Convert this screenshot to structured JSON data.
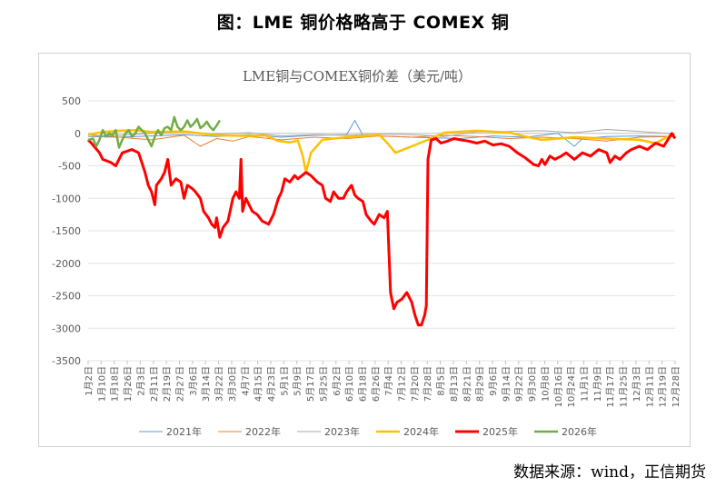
{
  "header": {
    "title": "图：LME 铜价格略高于 COMEX 铜"
  },
  "footer": {
    "source": "数据来源：wind，正信期货"
  },
  "chart_data": {
    "type": "line",
    "title": "LME铜与COMEX铜价差（美元/吨）",
    "xlabel": "",
    "ylabel": "",
    "ylim": [
      -3500,
      500
    ],
    "yticks": [
      500,
      0,
      -500,
      -1000,
      -1500,
      -2000,
      -2500,
      -3000,
      -3500
    ],
    "grid": "horizontal",
    "legend": "bottom",
    "x_tick_labels": [
      "1月2日",
      "1月10日",
      "1月18日",
      "1月26日",
      "2月3日",
      "2月11日",
      "2月19日",
      "2月27日",
      "3月6日",
      "3月14日",
      "3月22日",
      "3月30日",
      "4月7日",
      "4月15日",
      "4月23日",
      "5月1日",
      "5月9日",
      "5月17日",
      "5月25日",
      "6月2日",
      "6月10日",
      "6月18日",
      "6月26日",
      "7月4日",
      "7月12日",
      "7月20日",
      "7月28日",
      "8月5日",
      "8月13日",
      "8月21日",
      "8月29日",
      "9月6日",
      "9月14日",
      "9月22日",
      "9月30日",
      "10月8日",
      "10月16日",
      "10月24日",
      "11月1日",
      "11月9日",
      "11月17日",
      "11月25日",
      "12月3日",
      "12月11日",
      "12月19日",
      "12月28日"
    ],
    "x_domain_days": [
      1,
      362
    ],
    "series": [
      {
        "name": "2021年",
        "color": "#5b9bd5",
        "width": 1,
        "points": [
          [
            1,
            -50
          ],
          [
            20,
            -60
          ],
          [
            40,
            -40
          ],
          [
            60,
            -20
          ],
          [
            80,
            -50
          ],
          [
            100,
            -20
          ],
          [
            120,
            -60
          ],
          [
            140,
            -30
          ],
          [
            160,
            -20
          ],
          [
            165,
            200
          ],
          [
            170,
            -30
          ],
          [
            200,
            -60
          ],
          [
            230,
            -80
          ],
          [
            250,
            -40
          ],
          [
            270,
            -60
          ],
          [
            280,
            -30
          ],
          [
            290,
            0
          ],
          [
            295,
            -100
          ],
          [
            300,
            -200
          ],
          [
            305,
            -80
          ],
          [
            320,
            -50
          ],
          [
            340,
            -40
          ],
          [
            362,
            -50
          ]
        ]
      },
      {
        "name": "2022年",
        "color": "#ed7d31",
        "width": 1,
        "points": [
          [
            1,
            -20
          ],
          [
            20,
            -60
          ],
          [
            40,
            -100
          ],
          [
            60,
            -30
          ],
          [
            70,
            -200
          ],
          [
            80,
            -80
          ],
          [
            90,
            -120
          ],
          [
            100,
            -50
          ],
          [
            120,
            -100
          ],
          [
            140,
            -60
          ],
          [
            160,
            -80
          ],
          [
            180,
            -40
          ],
          [
            200,
            -60
          ],
          [
            220,
            -30
          ],
          [
            240,
            -50
          ],
          [
            260,
            -80
          ],
          [
            280,
            -60
          ],
          [
            300,
            -80
          ],
          [
            320,
            -120
          ],
          [
            340,
            -60
          ],
          [
            362,
            -50
          ]
        ]
      },
      {
        "name": "2023年",
        "color": "#a5a5a5",
        "width": 1,
        "points": [
          [
            1,
            -50
          ],
          [
            20,
            -30
          ],
          [
            40,
            0
          ],
          [
            60,
            20
          ],
          [
            80,
            -10
          ],
          [
            100,
            10
          ],
          [
            120,
            -40
          ],
          [
            140,
            -20
          ],
          [
            160,
            -30
          ],
          [
            180,
            -10
          ],
          [
            200,
            -20
          ],
          [
            220,
            -50
          ],
          [
            240,
            20
          ],
          [
            260,
            30
          ],
          [
            280,
            40
          ],
          [
            300,
            10
          ],
          [
            320,
            60
          ],
          [
            340,
            30
          ],
          [
            362,
            -10
          ]
        ]
      },
      {
        "name": "2024年",
        "color": "#ffc000",
        "width": 2.5,
        "points": [
          [
            1,
            -20
          ],
          [
            10,
            20
          ],
          [
            20,
            40
          ],
          [
            30,
            50
          ],
          [
            40,
            20
          ],
          [
            60,
            30
          ],
          [
            80,
            -30
          ],
          [
            100,
            -40
          ],
          [
            110,
            -30
          ],
          [
            118,
            -120
          ],
          [
            125,
            -140
          ],
          [
            130,
            -110
          ],
          [
            133,
            -350
          ],
          [
            135,
            -600
          ],
          [
            138,
            -300
          ],
          [
            145,
            -100
          ],
          [
            160,
            -60
          ],
          [
            180,
            -20
          ],
          [
            185,
            -150
          ],
          [
            190,
            -300
          ],
          [
            200,
            -200
          ],
          [
            210,
            -100
          ],
          [
            220,
            10
          ],
          [
            240,
            40
          ],
          [
            260,
            10
          ],
          [
            270,
            -50
          ],
          [
            280,
            -100
          ],
          [
            300,
            -60
          ],
          [
            320,
            -80
          ],
          [
            340,
            -100
          ],
          [
            350,
            -150
          ],
          [
            360,
            -20
          ]
        ]
      },
      {
        "name": "2025年",
        "color": "#ff0000",
        "width": 3,
        "points": [
          [
            1,
            -100
          ],
          [
            3,
            -150
          ],
          [
            8,
            -300
          ],
          [
            10,
            -400
          ],
          [
            15,
            -450
          ],
          [
            18,
            -500
          ],
          [
            22,
            -300
          ],
          [
            28,
            -250
          ],
          [
            32,
            -300
          ],
          [
            34,
            -450
          ],
          [
            36,
            -600
          ],
          [
            38,
            -800
          ],
          [
            40,
            -900
          ],
          [
            42,
            -1100
          ],
          [
            43,
            -800
          ],
          [
            46,
            -700
          ],
          [
            48,
            -600
          ],
          [
            50,
            -400
          ],
          [
            52,
            -800
          ],
          [
            55,
            -700
          ],
          [
            58,
            -750
          ],
          [
            60,
            -1000
          ],
          [
            62,
            -800
          ],
          [
            65,
            -850
          ],
          [
            67,
            -900
          ],
          [
            70,
            -1000
          ],
          [
            72,
            -1200
          ],
          [
            75,
            -1300
          ],
          [
            77,
            -1400
          ],
          [
            79,
            -1450
          ],
          [
            80,
            -1300
          ],
          [
            82,
            -1600
          ],
          [
            84,
            -1450
          ],
          [
            87,
            -1350
          ],
          [
            90,
            -1000
          ],
          [
            92,
            -900
          ],
          [
            94,
            -1000
          ],
          [
            95,
            -400
          ],
          [
            96,
            -1200
          ],
          [
            98,
            -1000
          ],
          [
            102,
            -1200
          ],
          [
            105,
            -1250
          ],
          [
            108,
            -1350
          ],
          [
            112,
            -1400
          ],
          [
            115,
            -1250
          ],
          [
            118,
            -1000
          ],
          [
            120,
            -900
          ],
          [
            122,
            -700
          ],
          [
            125,
            -750
          ],
          [
            128,
            -650
          ],
          [
            130,
            -700
          ],
          [
            135,
            -600
          ],
          [
            138,
            -650
          ],
          [
            140,
            -700
          ],
          [
            142,
            -750
          ],
          [
            145,
            -800
          ],
          [
            147,
            -1000
          ],
          [
            150,
            -1050
          ],
          [
            152,
            -900
          ],
          [
            155,
            -1000
          ],
          [
            158,
            -1000
          ],
          [
            160,
            -900
          ],
          [
            163,
            -800
          ],
          [
            165,
            -950
          ],
          [
            167,
            -1000
          ],
          [
            170,
            -1050
          ],
          [
            172,
            -1250
          ],
          [
            175,
            -1350
          ],
          [
            177,
            -1400
          ],
          [
            180,
            -1250
          ],
          [
            183,
            -1300
          ],
          [
            185,
            -1200
          ],
          [
            187,
            -2450
          ],
          [
            189,
            -2700
          ],
          [
            191,
            -2600
          ],
          [
            194,
            -2550
          ],
          [
            197,
            -2450
          ],
          [
            200,
            -2600
          ],
          [
            202,
            -2800
          ],
          [
            204,
            -2950
          ],
          [
            206,
            -2950
          ],
          [
            208,
            -2800
          ],
          [
            209,
            -2650
          ],
          [
            210,
            -400
          ],
          [
            212,
            -100
          ],
          [
            215,
            -80
          ],
          [
            218,
            -150
          ],
          [
            222,
            -120
          ],
          [
            226,
            -80
          ],
          [
            230,
            -100
          ],
          [
            235,
            -120
          ],
          [
            240,
            -150
          ],
          [
            245,
            -120
          ],
          [
            250,
            -180
          ],
          [
            255,
            -160
          ],
          [
            260,
            -200
          ],
          [
            265,
            -300
          ],
          [
            270,
            -380
          ],
          [
            275,
            -480
          ],
          [
            278,
            -500
          ],
          [
            280,
            -400
          ],
          [
            282,
            -480
          ],
          [
            285,
            -350
          ],
          [
            288,
            -400
          ],
          [
            292,
            -350
          ],
          [
            295,
            -300
          ],
          [
            300,
            -400
          ],
          [
            305,
            -300
          ],
          [
            310,
            -350
          ],
          [
            315,
            -250
          ],
          [
            320,
            -300
          ],
          [
            322,
            -450
          ],
          [
            325,
            -350
          ],
          [
            328,
            -400
          ],
          [
            332,
            -300
          ],
          [
            335,
            -250
          ],
          [
            340,
            -200
          ],
          [
            345,
            -250
          ],
          [
            350,
            -150
          ],
          [
            355,
            -200
          ],
          [
            360,
            0
          ],
          [
            362,
            -80
          ]
        ]
      },
      {
        "name": "2026年",
        "color": "#70ad47",
        "width": 2.5,
        "points": [
          [
            1,
            -100
          ],
          [
            4,
            -80
          ],
          [
            6,
            -200
          ],
          [
            8,
            -100
          ],
          [
            10,
            50
          ],
          [
            12,
            -50
          ],
          [
            14,
            0
          ],
          [
            16,
            -30
          ],
          [
            18,
            50
          ],
          [
            20,
            -220
          ],
          [
            22,
            -100
          ],
          [
            24,
            0
          ],
          [
            26,
            50
          ],
          [
            28,
            -50
          ],
          [
            30,
            0
          ],
          [
            32,
            100
          ],
          [
            34,
            50
          ],
          [
            36,
            0
          ],
          [
            38,
            -100
          ],
          [
            40,
            -200
          ],
          [
            42,
            -50
          ],
          [
            44,
            50
          ],
          [
            46,
            -30
          ],
          [
            48,
            80
          ],
          [
            50,
            100
          ],
          [
            52,
            50
          ],
          [
            54,
            250
          ],
          [
            56,
            100
          ],
          [
            58,
            50
          ],
          [
            60,
            100
          ],
          [
            62,
            200
          ],
          [
            64,
            100
          ],
          [
            66,
            150
          ],
          [
            68,
            220
          ],
          [
            70,
            80
          ],
          [
            72,
            120
          ],
          [
            74,
            180
          ],
          [
            76,
            100
          ],
          [
            78,
            50
          ],
          [
            80,
            120
          ],
          [
            82,
            200
          ]
        ]
      }
    ]
  }
}
